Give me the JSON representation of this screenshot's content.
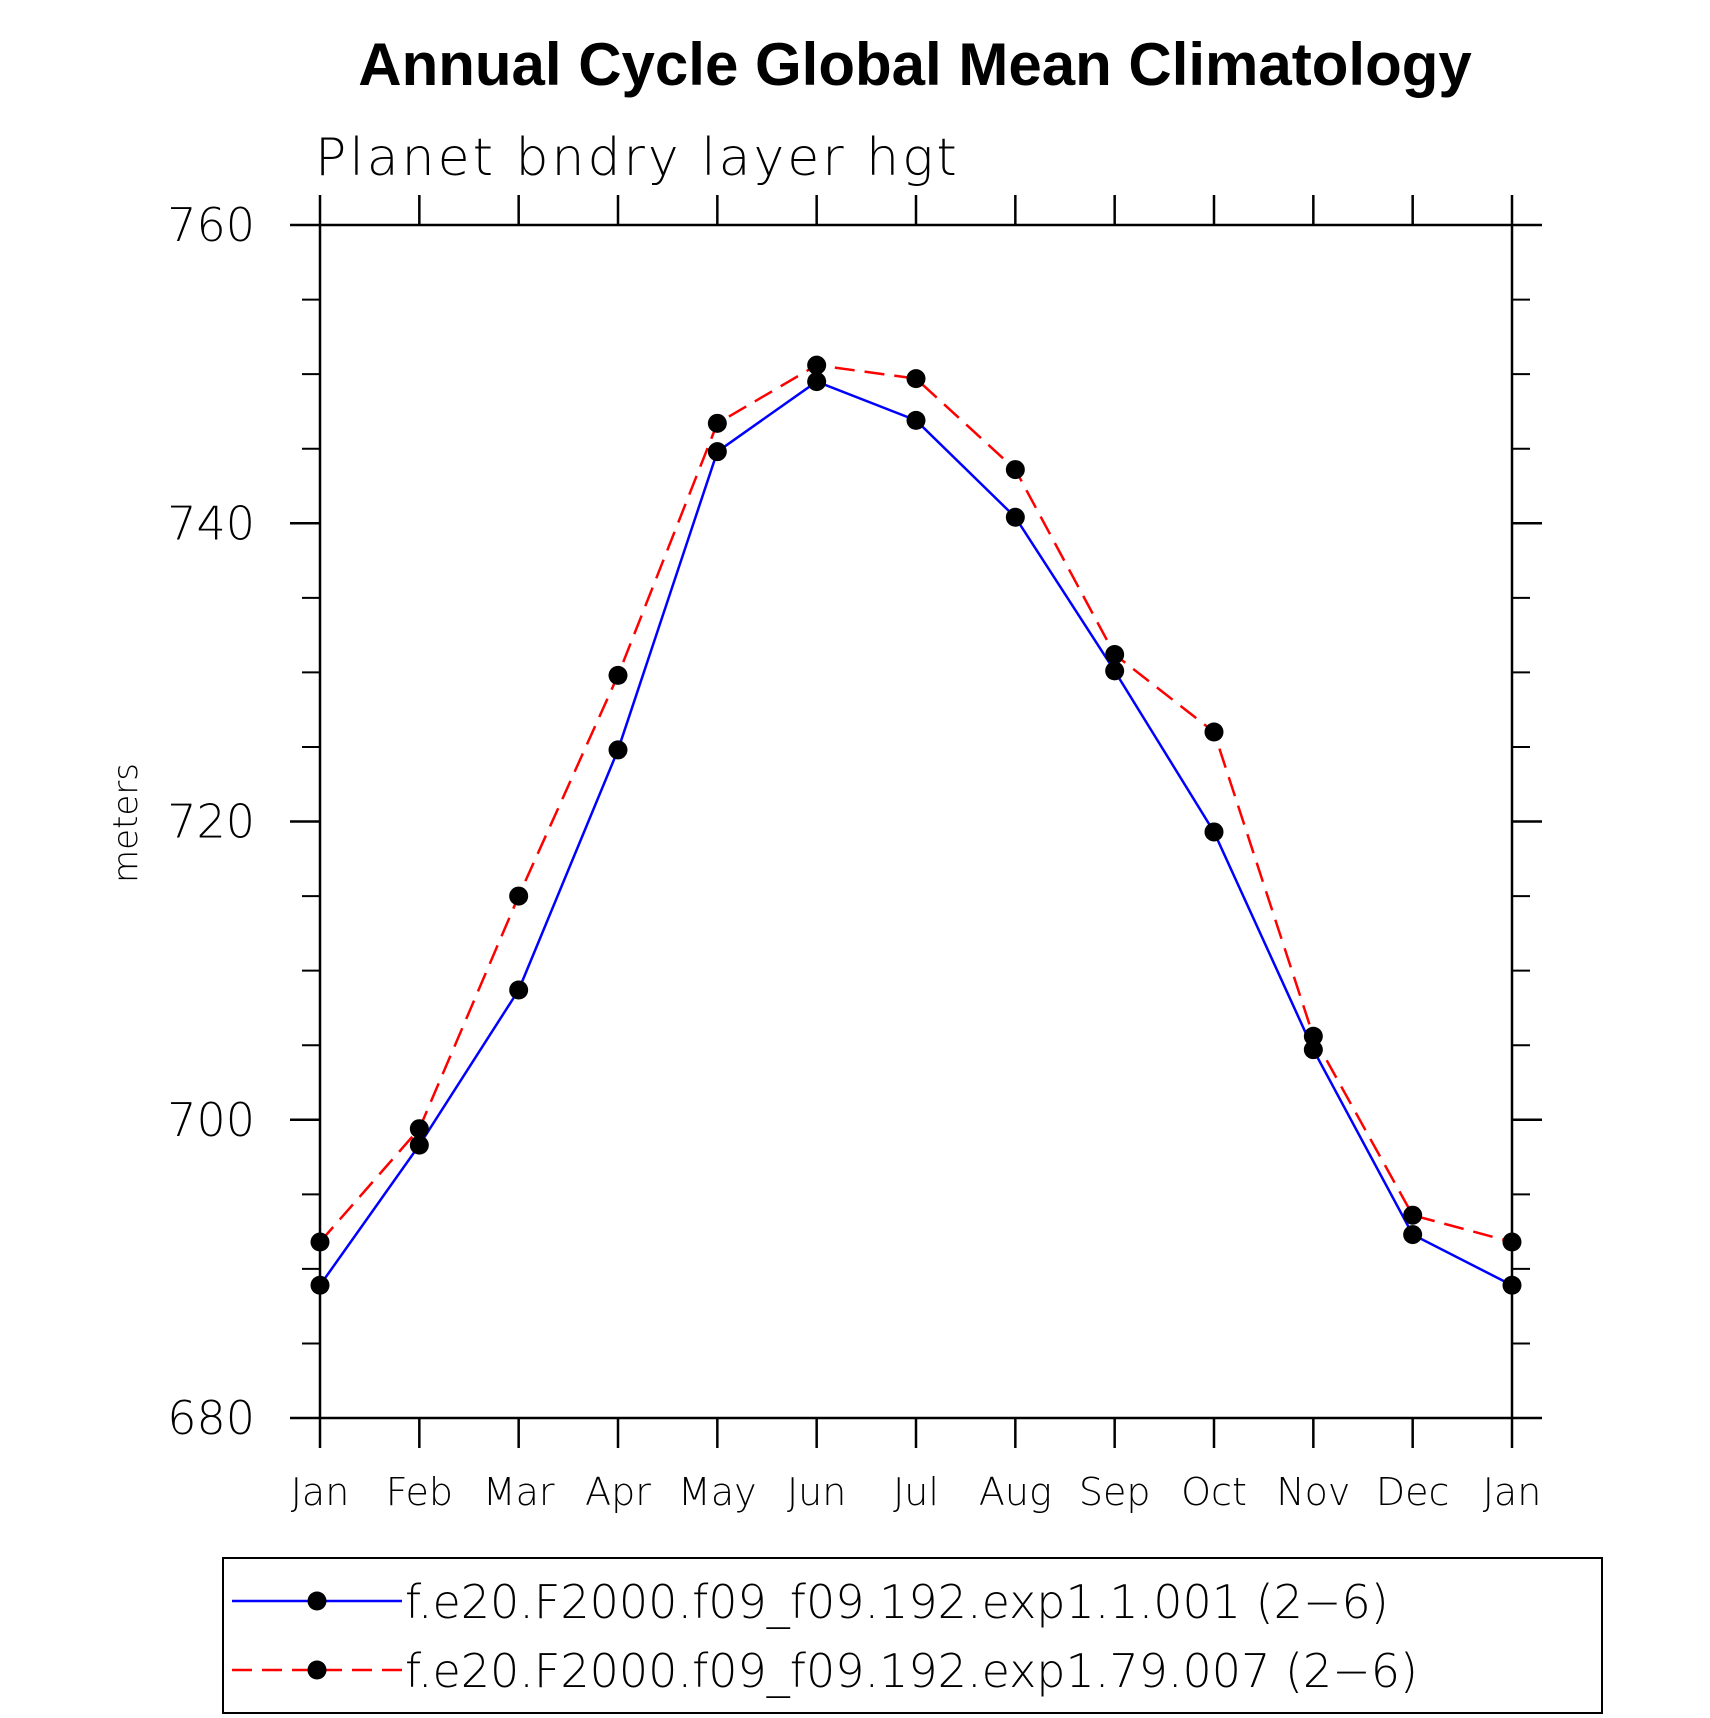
{
  "chart_data": {
    "type": "line",
    "title": "Annual Cycle Global Mean Climatology",
    "subtitle": "Planet bndry layer hgt",
    "xlabel": "",
    "ylabel": "meters",
    "categories": [
      "Jan",
      "Feb",
      "Mar",
      "Apr",
      "May",
      "Jun",
      "Jul",
      "Aug",
      "Sep",
      "Oct",
      "Nov",
      "Dec",
      "Jan"
    ],
    "ylim": [
      680,
      760
    ],
    "yticks": [
      680,
      700,
      720,
      740,
      760
    ],
    "yminor_step": 5,
    "grid": false,
    "legend_position": "bottom",
    "series": [
      {
        "name": "f.e20.F2000.f09_f09.192.exp1.1.001 (2−6)",
        "color": "#0000ff",
        "dash": "solid",
        "marker": "filled-circle",
        "values": [
          688.9,
          698.3,
          708.7,
          724.8,
          744.8,
          749.5,
          746.9,
          740.4,
          730.1,
          719.3,
          704.7,
          692.3,
          688.9
        ]
      },
      {
        "name": "f.e20.F2000.f09_f09.192.exp1.79.007 (2−6)",
        "color": "#ff0000",
        "dash": "dashed",
        "marker": "filled-circle",
        "values": [
          691.8,
          699.4,
          715.0,
          729.8,
          746.7,
          750.6,
          749.7,
          743.6,
          731.2,
          726.0,
          705.6,
          693.6,
          691.8
        ]
      }
    ]
  }
}
